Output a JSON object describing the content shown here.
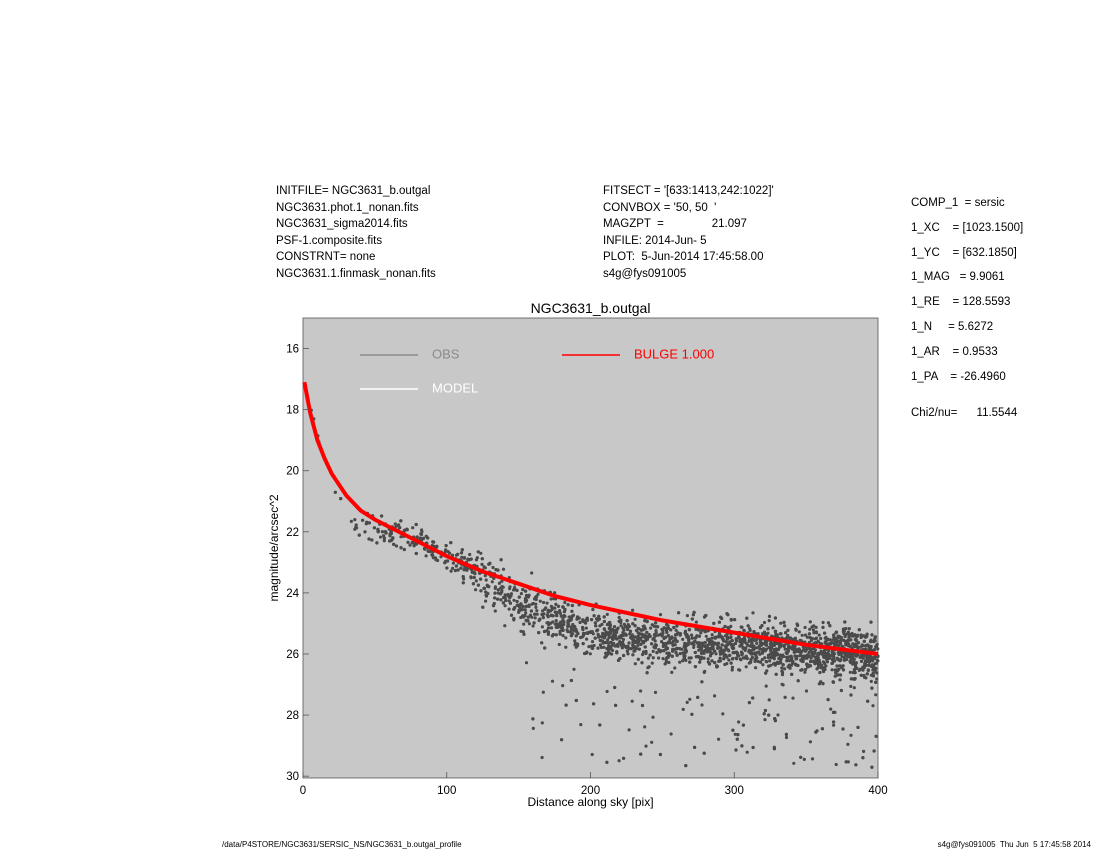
{
  "header": {
    "left": [
      "INITFILE= NGC3631_b.outgal",
      "NGC3631.phot.1_nonan.fits",
      "NGC3631_sigma2014.fits",
      "PSF-1.composite.fits",
      "CONSTRNT= none",
      "NGC3631.1.finmask_nonan.fits"
    ],
    "middle": [
      "FITSECT = '[633:1413,242:1022]'",
      "CONVBOX = '50, 50  '",
      "MAGZPT  =               21.097",
      "INFILE: 2014-Jun- 5",
      "PLOT:  5-Jun-2014 17:45:58.00",
      "s4g@fys091005"
    ],
    "params": [
      "COMP_1  = sersic",
      "1_XC    = [1023.1500]",
      "1_YC    = [632.1850]",
      "1_MAG   = 9.9061",
      "1_RE    = 128.5593",
      "1_N     = 5.6272",
      "1_AR    = 0.9533",
      "1_PA    = -26.4960"
    ],
    "chi2": "Chi2/nu=      11.5544"
  },
  "chart_data": {
    "type": "scatter",
    "title": "NGC3631_b.outgal",
    "xlabel": "Distance along sky [pix]",
    "ylabel": "magnitude/arcsec^2",
    "xlim": [
      0,
      400
    ],
    "ylim": [
      30,
      15
    ],
    "y_inverted": true,
    "xticks": [
      0,
      100,
      200,
      300,
      400
    ],
    "yticks": [
      16,
      18,
      20,
      22,
      24,
      26,
      28,
      30
    ],
    "grid": false,
    "plot_background": "#c8c8c8",
    "legend": [
      {
        "label": "OBS",
        "color": "#8a8a8a",
        "text_color": "#8a8a8a"
      },
      {
        "label": "BULGE  1.000",
        "color": "#ff0000",
        "text_color": "#ff0000"
      },
      {
        "label": "MODEL",
        "color": "#ffffff",
        "text_color": "#ffffff"
      }
    ],
    "series": [
      {
        "name": "OBS",
        "style": "points",
        "color": "#4a4a4a",
        "trend": [
          {
            "x": 0,
            "y": 17.0
          },
          {
            "x": 5,
            "y": 17.9
          },
          {
            "x": 10,
            "y": 18.9
          },
          {
            "x": 15,
            "y": 19.7
          },
          {
            "x": 20,
            "y": 20.4
          },
          {
            "x": 30,
            "y": 21.3
          },
          {
            "x": 40,
            "y": 21.8
          },
          {
            "x": 55,
            "y": 21.9
          },
          {
            "x": 70,
            "y": 22.1
          },
          {
            "x": 90,
            "y": 22.5
          },
          {
            "x": 110,
            "y": 23.0
          },
          {
            "x": 130,
            "y": 23.7
          },
          {
            "x": 150,
            "y": 24.4
          },
          {
            "x": 175,
            "y": 24.9
          },
          {
            "x": 200,
            "y": 25.3
          },
          {
            "x": 250,
            "y": 25.6
          },
          {
            "x": 300,
            "y": 25.7
          },
          {
            "x": 350,
            "y": 25.9
          },
          {
            "x": 400,
            "y": 26.0
          }
        ]
      },
      {
        "name": "BULGE  1.000",
        "style": "line",
        "color": "#ff0000",
        "points": [
          {
            "x": 1,
            "y": 17.1
          },
          {
            "x": 5,
            "y": 18.1
          },
          {
            "x": 10,
            "y": 19.0
          },
          {
            "x": 15,
            "y": 19.6
          },
          {
            "x": 20,
            "y": 20.1
          },
          {
            "x": 30,
            "y": 20.8
          },
          {
            "x": 40,
            "y": 21.3
          },
          {
            "x": 50,
            "y": 21.6
          },
          {
            "x": 75,
            "y": 22.2
          },
          {
            "x": 100,
            "y": 22.8
          },
          {
            "x": 125,
            "y": 23.3
          },
          {
            "x": 150,
            "y": 23.7
          },
          {
            "x": 175,
            "y": 24.1
          },
          {
            "x": 200,
            "y": 24.4
          },
          {
            "x": 250,
            "y": 24.9
          },
          {
            "x": 300,
            "y": 25.3
          },
          {
            "x": 350,
            "y": 25.7
          },
          {
            "x": 400,
            "y": 26.0
          }
        ]
      }
    ]
  },
  "footer": {
    "left": "/data/P4STORE/NGC3631/SERSIC_NS/NGC3631_b.outgal_profile",
    "right": "s4g@fys091005  Thu Jun  5 17:45:58 2014"
  }
}
